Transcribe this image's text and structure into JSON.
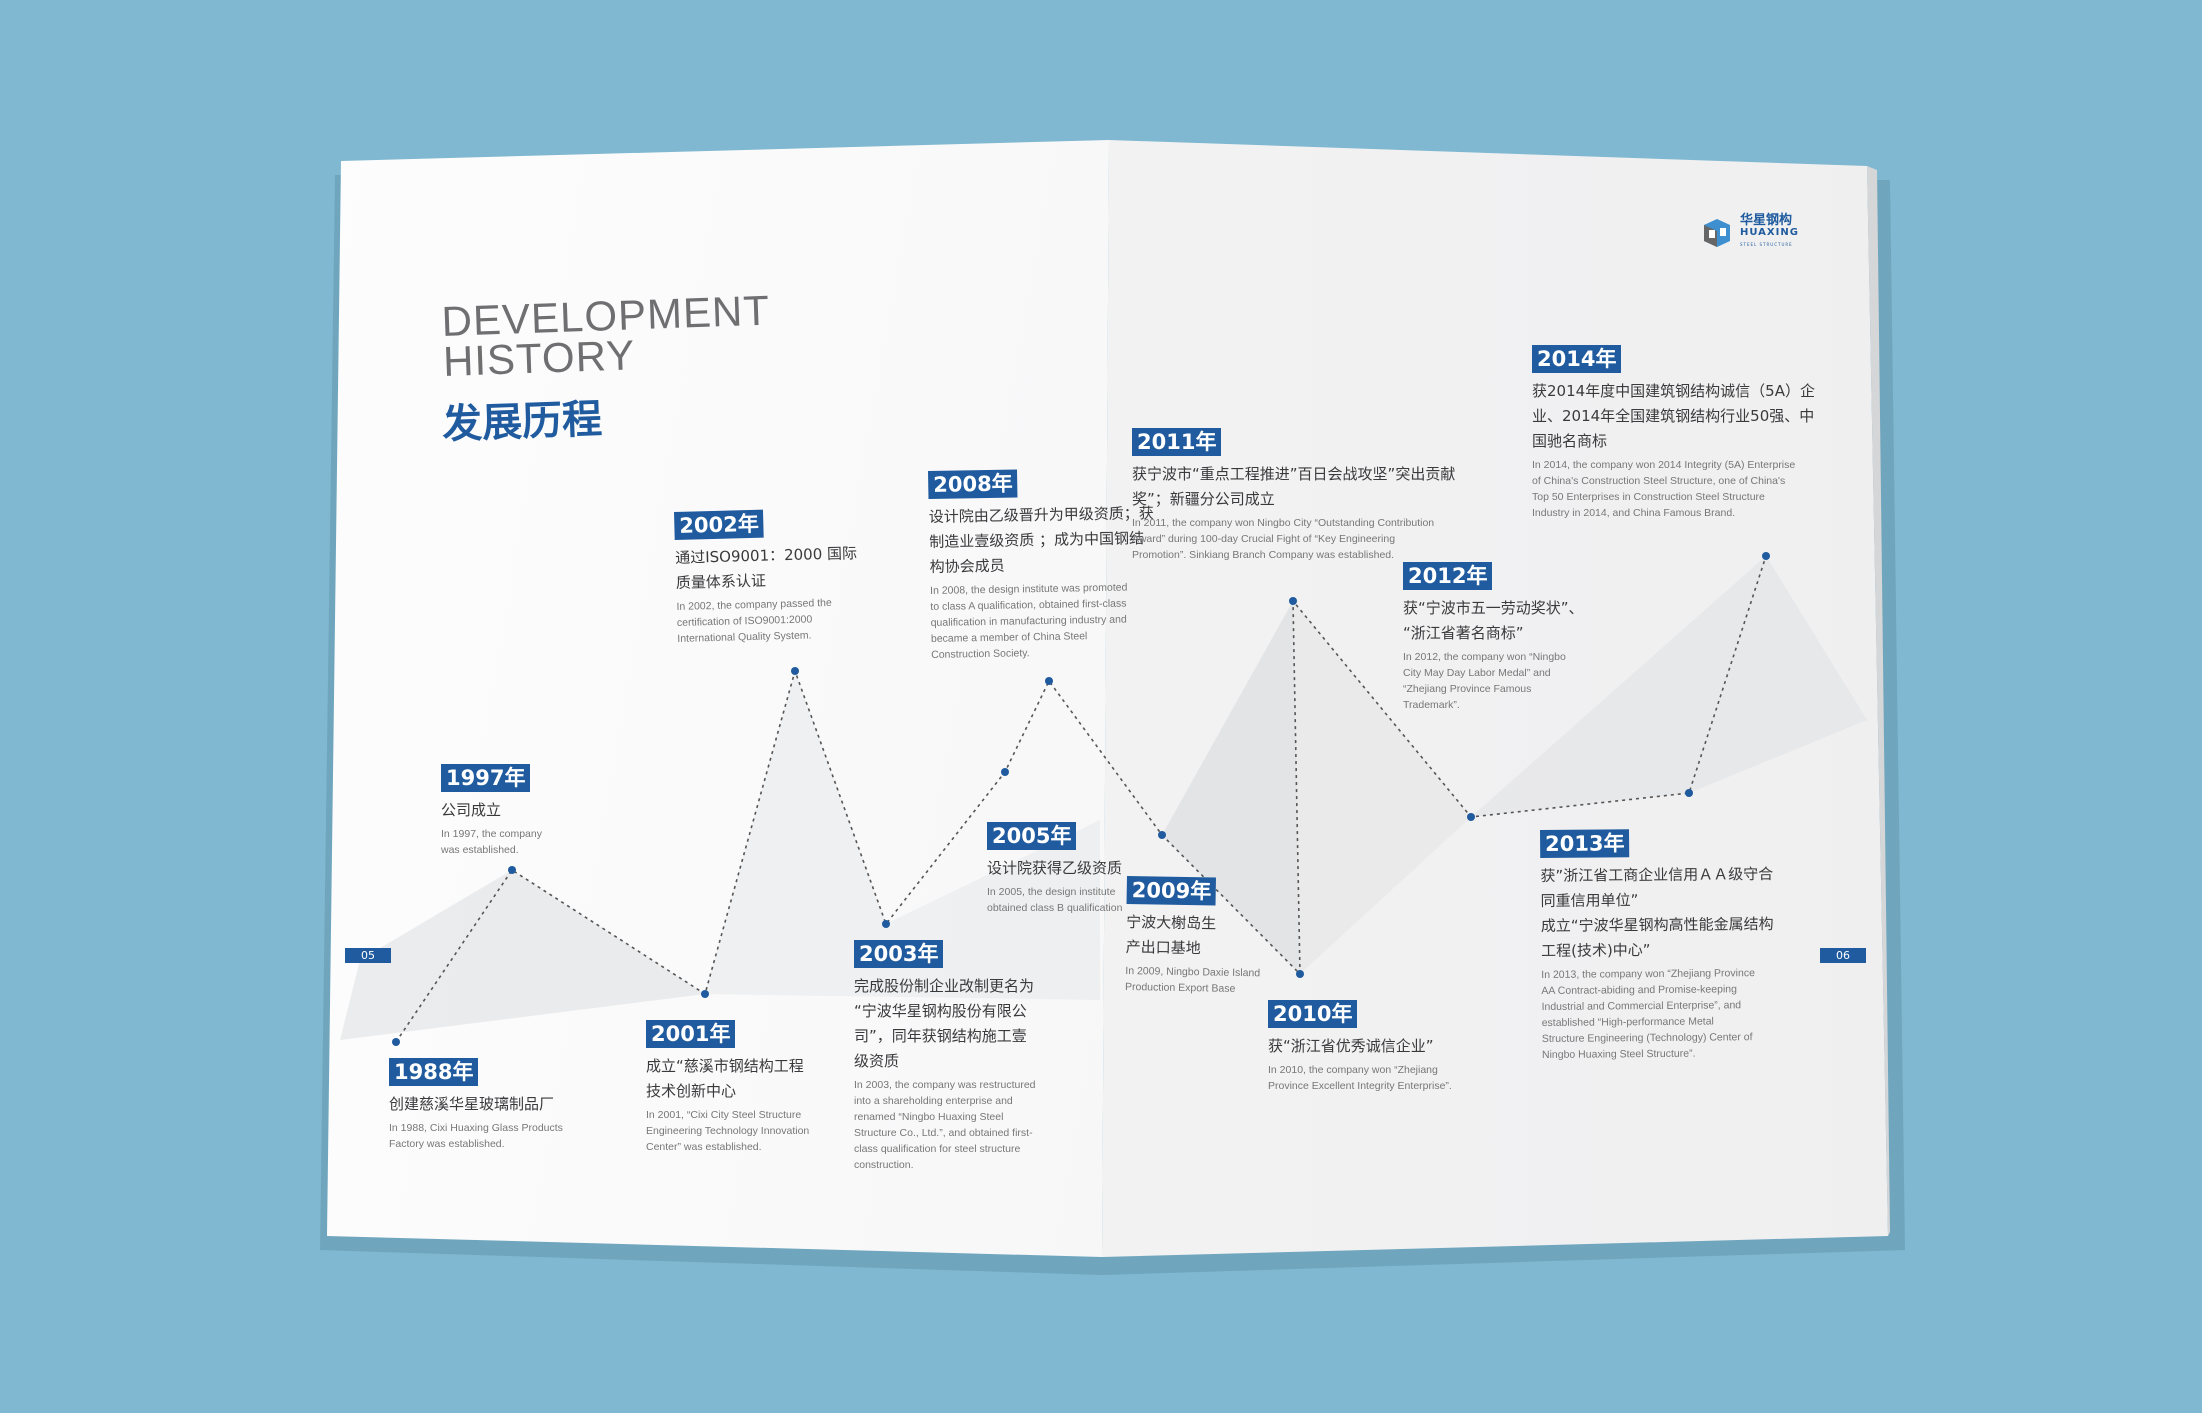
{
  "title": {
    "en_line1": "DEVELOPMENT",
    "en_line2": "HISTORY",
    "cn": "发展历程"
  },
  "logo": {
    "cn": "华星钢构",
    "en": "HUAXING",
    "sub": "STEEL STRUCTURE"
  },
  "page_numbers": {
    "left": "05",
    "right": "06"
  },
  "colors": {
    "background": "#7fb8d0",
    "accent": "#1f5b9e",
    "page": "#f4f4f5"
  },
  "milestones": [
    {
      "year": "1988年",
      "cn": [
        "创建慈溪华星玻璃制品厂"
      ],
      "en": [
        "In 1988, Cixi Huaxing Glass Products",
        "Factory was established."
      ]
    },
    {
      "year": "1997年",
      "cn": [
        "公司成立"
      ],
      "en": [
        "In 1997, the company",
        "was established."
      ]
    },
    {
      "year": "2001年",
      "cn": [
        "成立“慈溪市钢结构工程",
        "技术创新中心"
      ],
      "en": [
        "In 2001, “Cixi City Steel Structure",
        "Engineering Technology Innovation",
        "Center” was established."
      ]
    },
    {
      "year": "2002年",
      "cn": [
        "通过ISO9001：2000 国际",
        "质量体系认证"
      ],
      "en": [
        "In 2002, the company passed the",
        "certification of ISO9001:2000",
        "International Quality System."
      ]
    },
    {
      "year": "2003年",
      "cn": [
        "完成股份制企业改制更名为",
        "“宁波华星钢构股份有限公",
        "司”，同年获钢结构施工壹",
        "级资质"
      ],
      "en": [
        "In 2003, the company was restructured",
        "into a shareholding enterprise and",
        "renamed “Ningbo Huaxing Steel",
        "Structure Co., Ltd.”, and obtained first-",
        "class qualification for steel structure",
        "construction."
      ]
    },
    {
      "year": "2005年",
      "cn": [
        "设计院获得乙级资质"
      ],
      "en": [
        "In 2005, the design institute",
        "obtained class B qualification"
      ]
    },
    {
      "year": "2008年",
      "cn": [
        "设计院由乙级晋升为甲级资质；获",
        "制造业壹级资质 ；成为中国钢结",
        "构协会成员"
      ],
      "en": [
        "In 2008, the design institute was promoted",
        "to class A qualification, obtained first-class",
        "qualification in manufacturing industry and",
        "became a member of China Steel",
        "Construction Society."
      ]
    },
    {
      "year": "2009年",
      "cn": [
        "宁波大榭岛生",
        "产出口基地"
      ],
      "en": [
        "In 2009, Ningbo Daxie Island",
        "Production Export Base"
      ]
    },
    {
      "year": "2010年",
      "cn": [
        "获“浙江省优秀诚信企业”"
      ],
      "en": [
        "In 2010, the company won “Zhejiang",
        "Province Excellent Integrity Enterprise”."
      ]
    },
    {
      "year": "2011年",
      "cn": [
        "获宁波市“重点工程推进”百日会战攻坚”突出贡献",
        "奖”；新疆分公司成立"
      ],
      "en": [
        "In 2011, the company won Ningbo City “Outstanding Contribution",
        "Award” during 100-day Crucial Fight of “Key Engineering",
        "Promotion”. Sinkiang Branch Company was established."
      ]
    },
    {
      "year": "2012年",
      "cn": [
        "获“宁波市五一劳动奖状”、",
        "“浙江省著名商标”"
      ],
      "en": [
        "In 2012, the company won “Ningbo",
        "City May Day Labor Medal” and",
        "“Zhejiang Province Famous",
        "Trademark”."
      ]
    },
    {
      "year": "2013年",
      "cn": [
        "获”浙江省工商企业信用ＡＡ级守合",
        "同重信用单位”",
        "成立“宁波华星钢构高性能金属结构",
        "工程(技术)中心”"
      ],
      "en": [
        "In 2013, the company won “Zhejiang Province",
        "AA Contract-abiding and Promise-keeping",
        "Industrial and Commercial Enterprise”, and",
        "established “High-performance Metal",
        "Structure Engineering (Technology) Center of",
        "Ningbo Huaxing Steel Structure”."
      ]
    },
    {
      "year": "2014年",
      "cn": [
        "获2014年度中国建筑钢结构诚信（5A）企",
        "业、2014年全国建筑钢结构行业50强、中",
        "国驰名商标"
      ],
      "en": [
        "In 2014, the company won 2014 Integrity (5A) Enterprise",
        "of China's Construction Steel Structure, one of China's",
        "Top 50 Enterprises in Construction Steel Structure",
        "Industry in 2014, and China Famous Brand."
      ]
    }
  ]
}
